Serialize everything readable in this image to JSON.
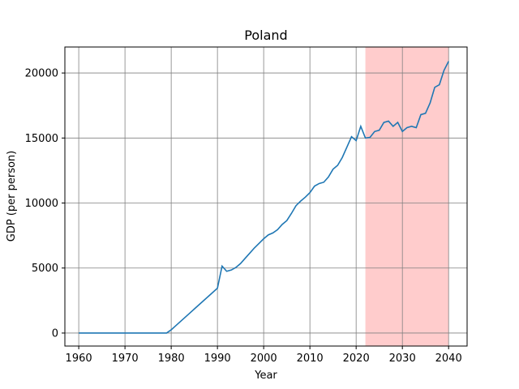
{
  "chart_data": {
    "type": "line",
    "title": "Poland",
    "xlabel": "Year",
    "ylabel": "GDP (per person)",
    "xlim": [
      1957,
      2044
    ],
    "ylim": [
      -1000,
      22000
    ],
    "xticks": [
      1960,
      1970,
      1980,
      1990,
      2000,
      2010,
      2020,
      2030,
      2040
    ],
    "yticks": [
      0,
      5000,
      10000,
      15000,
      20000
    ],
    "grid": true,
    "highlight_range": {
      "x": [
        2022,
        2040
      ],
      "color": "#ffcccc"
    },
    "series": [
      {
        "color": "#1f77b4",
        "x": [
          1960,
          1965,
          1970,
          1975,
          1979,
          1980,
          1981,
          1982,
          1983,
          1984,
          1985,
          1986,
          1987,
          1988,
          1989,
          1990,
          1991,
          1992,
          1993,
          1994,
          1995,
          1996,
          1997,
          1998,
          1999,
          2000,
          2001,
          2002,
          2003,
          2004,
          2005,
          2006,
          2007,
          2008,
          2009,
          2010,
          2011,
          2012,
          2013,
          2014,
          2015,
          2016,
          2017,
          2018,
          2019,
          2020,
          2021,
          2022,
          2023,
          2024,
          2025,
          2026,
          2027,
          2028,
          2029,
          2030,
          2031,
          2032,
          2033,
          2034,
          2035,
          2036,
          2037,
          2038,
          2039,
          2040
        ],
        "values": [
          0,
          0,
          0,
          0,
          0,
          250,
          570,
          890,
          1210,
          1530,
          1850,
          2170,
          2490,
          2810,
          3130,
          3450,
          5150,
          4750,
          4850,
          5050,
          5350,
          5750,
          6150,
          6550,
          6900,
          7250,
          7550,
          7700,
          7950,
          8350,
          8650,
          9200,
          9800,
          10150,
          10450,
          10800,
          11300,
          11500,
          11600,
          12000,
          12600,
          12900,
          13500,
          14300,
          15100,
          14800,
          15900,
          15000,
          15050,
          15500,
          15600,
          16200,
          16300,
          15900,
          16200,
          15500,
          15800,
          15900,
          15800,
          16800,
          16900,
          17700,
          18900,
          19100,
          20200,
          20900
        ]
      }
    ]
  }
}
